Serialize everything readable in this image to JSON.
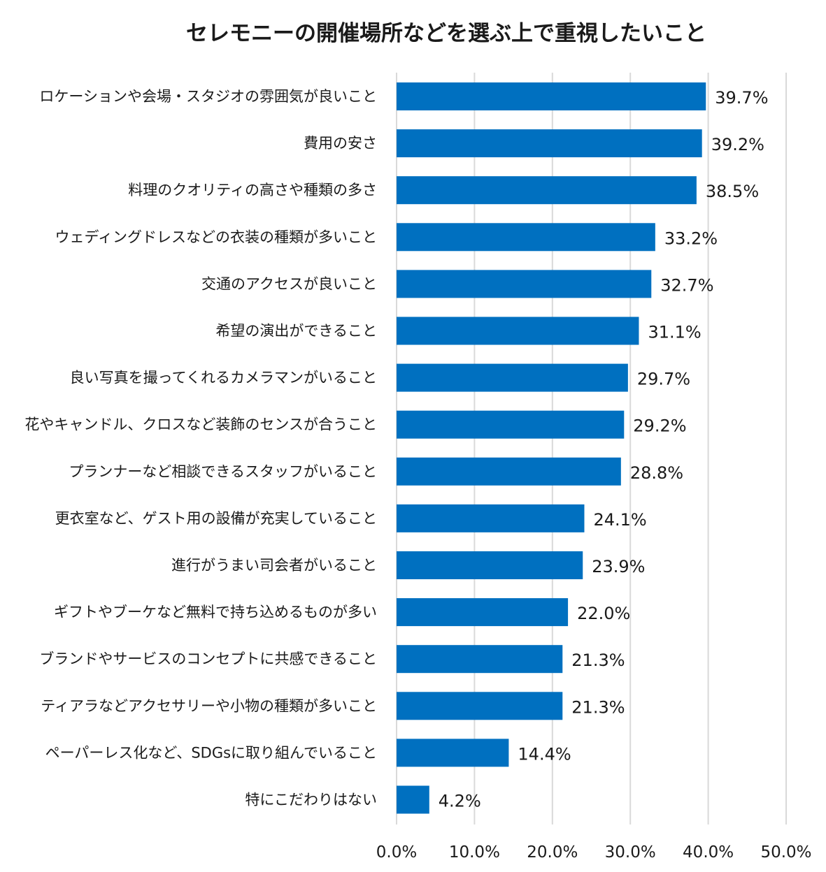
{
  "chart_data": {
    "type": "bar",
    "orientation": "horizontal",
    "title": "セレモニーの開催場所などを選ぶ上で重視したいこと",
    "categories": [
      "ロケーションや会場・スタジオの雰囲気が良いこと",
      "費用の安さ",
      "料理のクオリティの高さや種類の多さ",
      "ウェディングドレスなどの衣装の種類が多いこと",
      "交通のアクセスが良いこと",
      "希望の演出ができること",
      "良い写真を撮ってくれるカメラマンがいること",
      "花やキャンドル、クロスなど装飾のセンスが合うこと",
      "プランナーなど相談できるスタッフがいること",
      "更衣室など、ゲスト用の設備が充実していること",
      "進行がうまい司会者がいること",
      "ギフトやブーケなど無料で持ち込めるものが多い",
      "ブランドやサービスのコンセプトに共感できること",
      "ティアラなどアクセサリーや小物の種類が多いこと",
      "ペーパーレス化など、SDGsに取り組んでいること",
      "特にこだわりはない"
    ],
    "values": [
      39.7,
      39.2,
      38.5,
      33.2,
      32.7,
      31.1,
      29.7,
      29.2,
      28.8,
      24.1,
      23.9,
      22.0,
      21.3,
      21.3,
      14.4,
      4.2
    ],
    "data_labels": [
      "39.7%",
      "39.2%",
      "38.5%",
      "33.2%",
      "32.7%",
      "31.1%",
      "29.7%",
      "29.2%",
      "28.8%",
      "24.1%",
      "23.9%",
      "22.0%",
      "21.3%",
      "21.3%",
      "14.4%",
      "4.2%"
    ],
    "x_ticks": [
      0,
      10,
      20,
      30,
      40,
      50
    ],
    "x_tick_labels": [
      "0.0%",
      "10.0%",
      "20.0%",
      "30.0%",
      "40.0%",
      "50.0%"
    ],
    "xlim": [
      0,
      50
    ],
    "xlabel": "",
    "ylabel": "",
    "grid": "vertical",
    "legend": "none",
    "bar_color": "#0070c0",
    "grid_color": "#d9d9d9"
  }
}
